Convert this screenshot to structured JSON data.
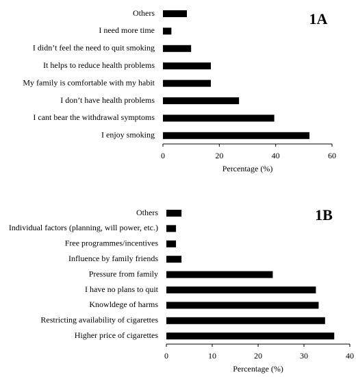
{
  "chart_data": [
    {
      "type": "bar",
      "orientation": "horizontal",
      "title": "1A",
      "categories": [
        "Others",
        "I need more time",
        "I didn’t feel the need to quit smoking",
        "It helps to reduce health problems",
        "My family is comfortable with my habit",
        "I don’t have health problems",
        "I cant bear the withdrawal symptoms",
        "I enjoy smoking"
      ],
      "values": [
        8.5,
        3,
        10,
        17,
        17,
        27,
        39.5,
        52
      ],
      "color": "#000000",
      "xlim": [
        0,
        60
      ],
      "xticks": [
        0,
        20,
        40,
        60
      ],
      "xlabel": "Percentage (%)"
    },
    {
      "type": "bar",
      "orientation": "horizontal",
      "title": "1B",
      "categories": [
        "Others",
        "Individual factors (planning, will power, etc.)",
        "Free programmes/incentives",
        "Influence by family friends",
        "Pressure from family",
        "I have no plans to quit",
        "Knowldege of harms",
        "Restricting availability of cigarettes",
        "Higher price of cigarettes"
      ],
      "values": [
        3.3,
        2.1,
        2.1,
        3.3,
        23.2,
        32.6,
        33.2,
        34.6,
        36.6
      ],
      "color": "#000000",
      "xlim": [
        0,
        40
      ],
      "xticks": [
        0,
        10,
        20,
        30,
        40
      ],
      "xlabel": "Percentage (%)"
    }
  ]
}
